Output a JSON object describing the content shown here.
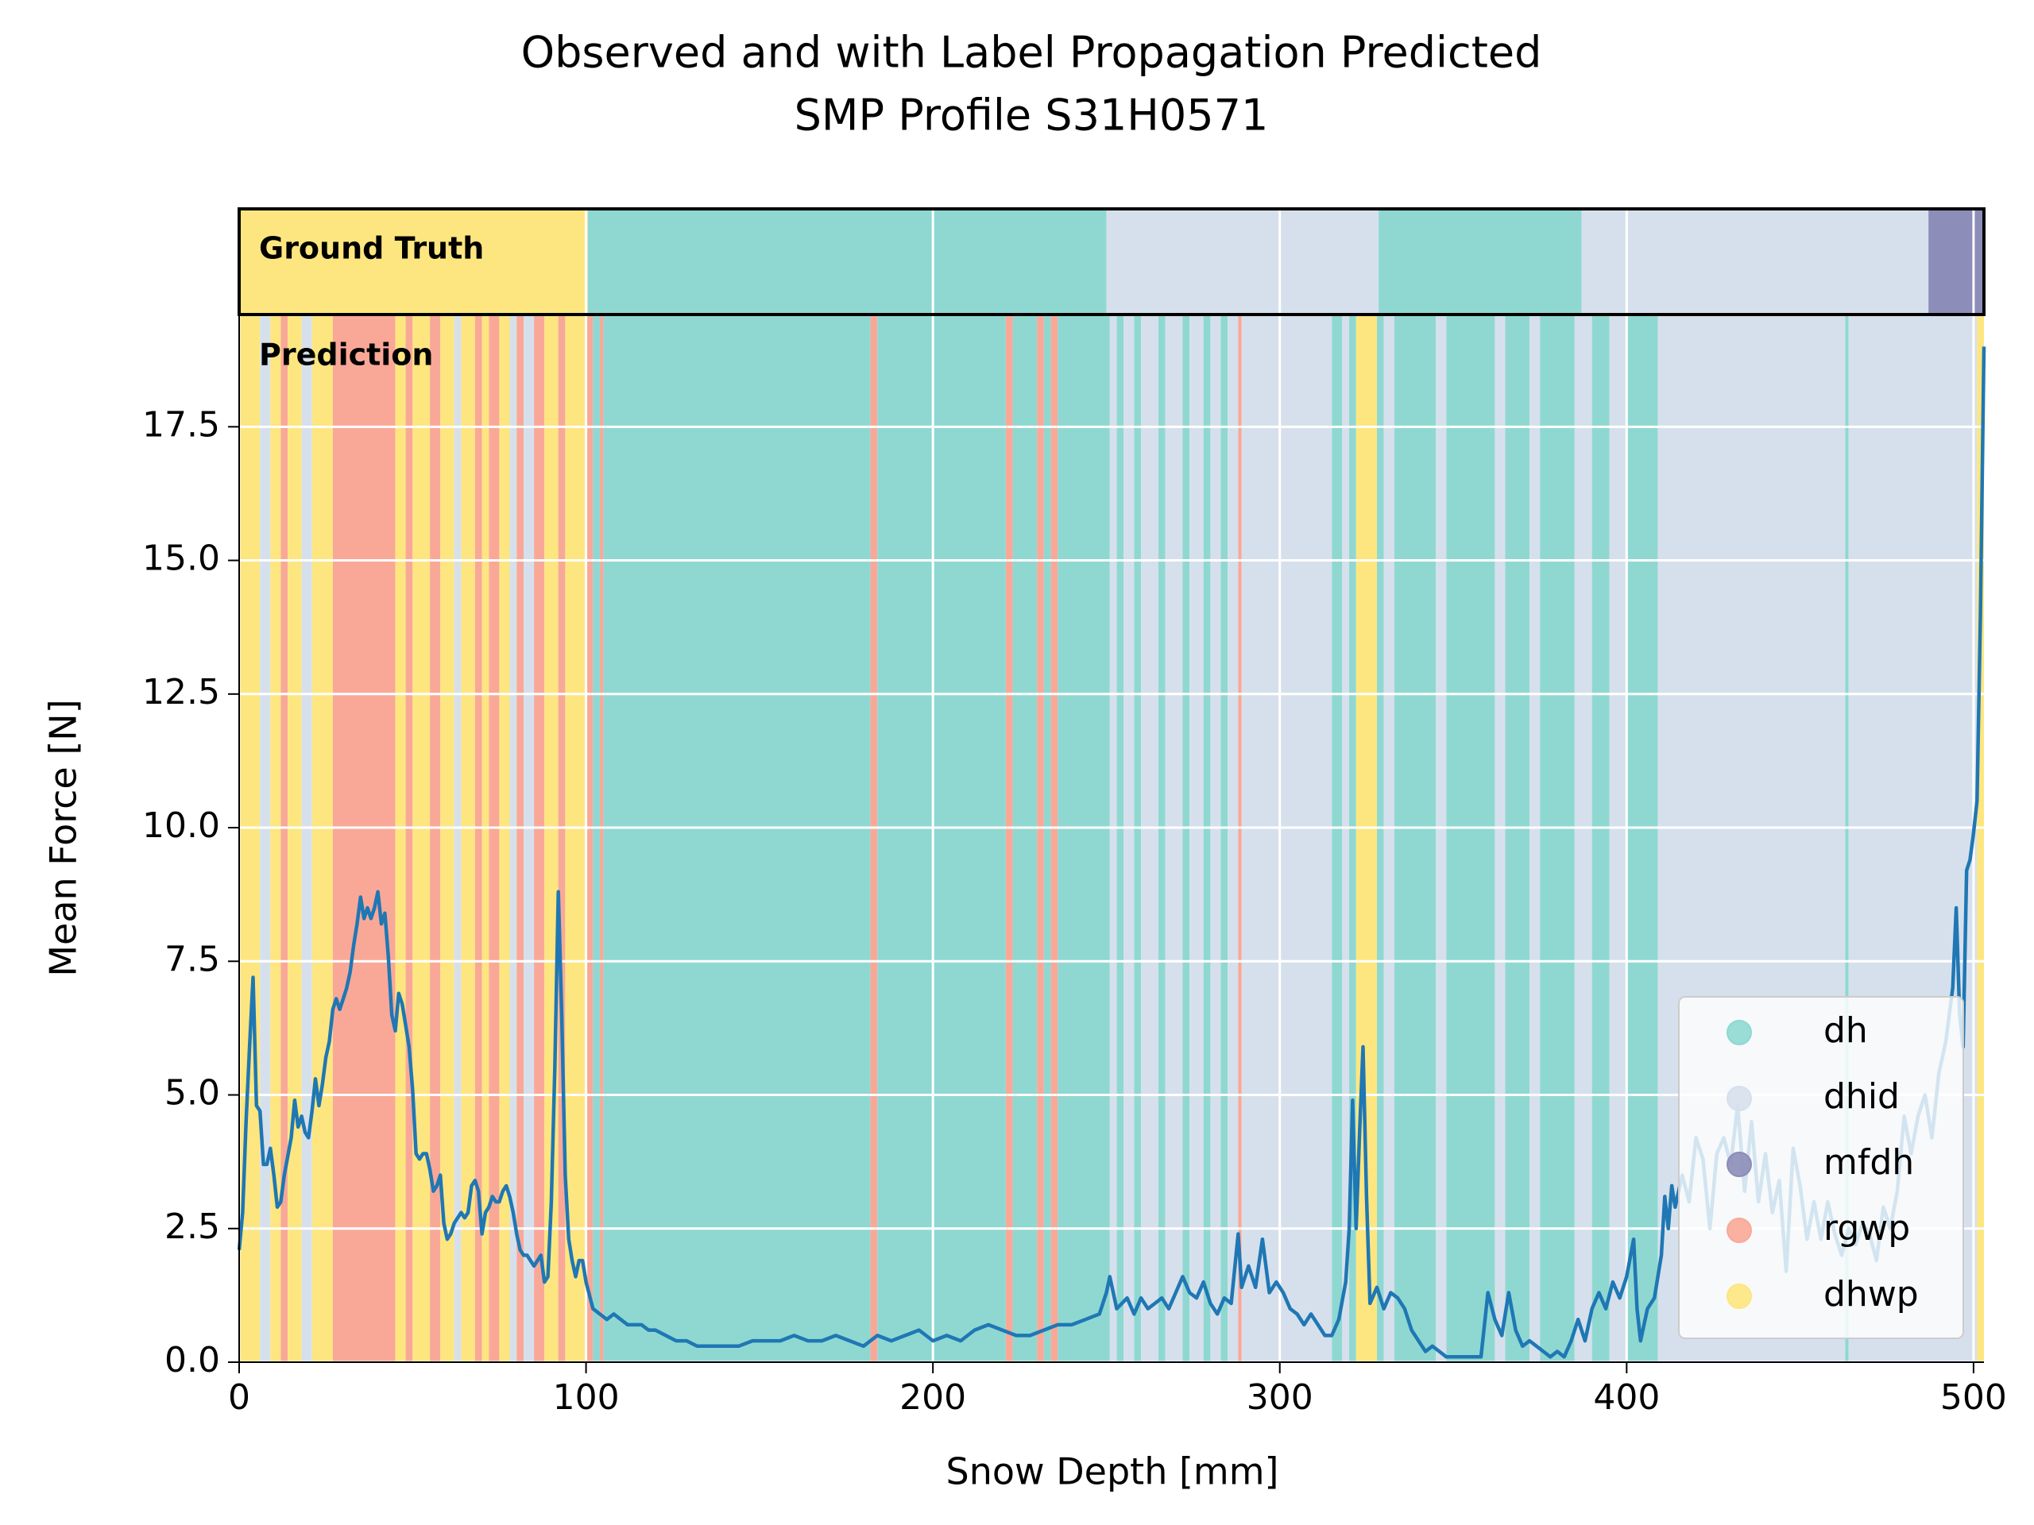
{
  "chart_data": {
    "type": "line",
    "title": "Observed and with Label Propagation Predicted",
    "subtitle": "SMP Profile S31H0571",
    "x_label": "Snow Depth [mm]",
    "y_label": "Mean Force [N]",
    "color": "#1f77b4",
    "xlim": [
      0,
      503
    ],
    "ylim": [
      0,
      19.6
    ],
    "xticks": [
      0,
      100,
      200,
      300,
      400,
      500
    ],
    "yticks": [
      {
        "value": 0,
        "label": "0.0"
      },
      2.5,
      {
        "value": 5,
        "label": "5.0"
      },
      7.5,
      {
        "value": 10,
        "label": "10.0"
      },
      12.5,
      {
        "value": 15,
        "label": "15.0"
      },
      17.5
    ],
    "grid": true,
    "legend": "lower right",
    "classes": [
      {
        "name": "dh",
        "color": "#8fd8d2"
      },
      {
        "name": "dhid",
        "color": "#d6e0ec"
      },
      {
        "name": "mfdh",
        "color": "#8c8db8"
      },
      {
        "name": "rgwp",
        "color": "#f9a898"
      },
      {
        "name": "dhwp",
        "color": "#fde67f"
      }
    ],
    "ground_truth": {
      "label": "Ground Truth",
      "segments": [
        {
          "start": 0,
          "end": 100.5,
          "class": "dhwp"
        },
        {
          "start": 100.5,
          "end": 250,
          "class": "dh"
        },
        {
          "start": 250,
          "end": 328.5,
          "class": "dhid"
        },
        {
          "start": 328.5,
          "end": 387,
          "class": "dh"
        },
        {
          "start": 387,
          "end": 487,
          "class": "dhid"
        },
        {
          "start": 487,
          "end": 503,
          "class": "mfdh"
        }
      ]
    },
    "prediction": {
      "label": "Prediction",
      "segments": [
        {
          "start": 0,
          "end": 6,
          "class": "dhwp"
        },
        {
          "start": 6,
          "end": 9,
          "class": "dhid"
        },
        {
          "start": 9,
          "end": 12,
          "class": "dhwp"
        },
        {
          "start": 12,
          "end": 14,
          "class": "rgwp"
        },
        {
          "start": 14,
          "end": 18,
          "class": "dhwp"
        },
        {
          "start": 18,
          "end": 21,
          "class": "dhid"
        },
        {
          "start": 21,
          "end": 27,
          "class": "dhwp"
        },
        {
          "start": 27,
          "end": 45,
          "class": "rgwp"
        },
        {
          "start": 45,
          "end": 48,
          "class": "dhwp"
        },
        {
          "start": 48,
          "end": 50,
          "class": "rgwp"
        },
        {
          "start": 50,
          "end": 55,
          "class": "dhwp"
        },
        {
          "start": 55,
          "end": 58,
          "class": "rgwp"
        },
        {
          "start": 58,
          "end": 62,
          "class": "dhwp"
        },
        {
          "start": 62,
          "end": 64,
          "class": "dhid"
        },
        {
          "start": 64,
          "end": 68,
          "class": "dhwp"
        },
        {
          "start": 68,
          "end": 70,
          "class": "rgwp"
        },
        {
          "start": 70,
          "end": 72,
          "class": "dhwp"
        },
        {
          "start": 72,
          "end": 75,
          "class": "rgwp"
        },
        {
          "start": 75,
          "end": 78,
          "class": "dhwp"
        },
        {
          "start": 78,
          "end": 80,
          "class": "dhid"
        },
        {
          "start": 80,
          "end": 82,
          "class": "rgwp"
        },
        {
          "start": 82,
          "end": 85,
          "class": "dhid"
        },
        {
          "start": 85,
          "end": 88,
          "class": "rgwp"
        },
        {
          "start": 88,
          "end": 92,
          "class": "dhwp"
        },
        {
          "start": 92,
          "end": 94,
          "class": "rgwp"
        },
        {
          "start": 94,
          "end": 100,
          "class": "dhwp"
        },
        {
          "start": 100,
          "end": 102,
          "class": "rgwp"
        },
        {
          "start": 102,
          "end": 104,
          "class": "dh"
        },
        {
          "start": 104,
          "end": 105,
          "class": "rgwp"
        },
        {
          "start": 105,
          "end": 182,
          "class": "dh"
        },
        {
          "start": 182,
          "end": 184,
          "class": "rgwp"
        },
        {
          "start": 184,
          "end": 221,
          "class": "dh"
        },
        {
          "start": 221,
          "end": 223,
          "class": "rgwp"
        },
        {
          "start": 223,
          "end": 230,
          "class": "dh"
        },
        {
          "start": 230,
          "end": 232,
          "class": "rgwp"
        },
        {
          "start": 232,
          "end": 234,
          "class": "dh"
        },
        {
          "start": 234,
          "end": 236,
          "class": "rgwp"
        },
        {
          "start": 236,
          "end": 251,
          "class": "dh"
        },
        {
          "start": 251,
          "end": 253,
          "class": "dhid"
        },
        {
          "start": 253,
          "end": 255,
          "class": "dh"
        },
        {
          "start": 255,
          "end": 258,
          "class": "dhid"
        },
        {
          "start": 258,
          "end": 260,
          "class": "dh"
        },
        {
          "start": 260,
          "end": 265,
          "class": "dhid"
        },
        {
          "start": 265,
          "end": 267,
          "class": "dh"
        },
        {
          "start": 267,
          "end": 272,
          "class": "dhid"
        },
        {
          "start": 272,
          "end": 274,
          "class": "dh"
        },
        {
          "start": 274,
          "end": 278,
          "class": "dhid"
        },
        {
          "start": 278,
          "end": 280,
          "class": "dh"
        },
        {
          "start": 280,
          "end": 283,
          "class": "dhid"
        },
        {
          "start": 283,
          "end": 285,
          "class": "dh"
        },
        {
          "start": 285,
          "end": 288,
          "class": "dhid"
        },
        {
          "start": 288,
          "end": 289,
          "class": "rgwp"
        },
        {
          "start": 289,
          "end": 315,
          "class": "dhid"
        },
        {
          "start": 315,
          "end": 318,
          "class": "dh"
        },
        {
          "start": 318,
          "end": 320,
          "class": "dhid"
        },
        {
          "start": 320,
          "end": 322,
          "class": "dh"
        },
        {
          "start": 322,
          "end": 328,
          "class": "dhwp"
        },
        {
          "start": 328,
          "end": 330,
          "class": "dh"
        },
        {
          "start": 330,
          "end": 333,
          "class": "dhid"
        },
        {
          "start": 333,
          "end": 345,
          "class": "dh"
        },
        {
          "start": 345,
          "end": 348,
          "class": "dhid"
        },
        {
          "start": 348,
          "end": 362,
          "class": "dh"
        },
        {
          "start": 362,
          "end": 365,
          "class": "dhid"
        },
        {
          "start": 365,
          "end": 372,
          "class": "dh"
        },
        {
          "start": 372,
          "end": 375,
          "class": "dhid"
        },
        {
          "start": 375,
          "end": 385,
          "class": "dh"
        },
        {
          "start": 385,
          "end": 390,
          "class": "dhid"
        },
        {
          "start": 390,
          "end": 395,
          "class": "dh"
        },
        {
          "start": 395,
          "end": 400,
          "class": "dhid"
        },
        {
          "start": 400,
          "end": 409,
          "class": "dh"
        },
        {
          "start": 409,
          "end": 463,
          "class": "dhid"
        },
        {
          "start": 463,
          "end": 464,
          "class": "dh"
        },
        {
          "start": 464,
          "end": 501,
          "class": "dhid"
        },
        {
          "start": 501,
          "end": 503,
          "class": "dhwp"
        }
      ]
    },
    "x": [
      0,
      1,
      2,
      3,
      4,
      5,
      6,
      7,
      8,
      9,
      10,
      11,
      12,
      13,
      15,
      16,
      17,
      18,
      19,
      20,
      21,
      22,
      23,
      24,
      25,
      26,
      27,
      28,
      29,
      30,
      31,
      32,
      33,
      34,
      35,
      36,
      37,
      38,
      39,
      40,
      41,
      42,
      43,
      44,
      45,
      46,
      47,
      48,
      49,
      50,
      51,
      52,
      53,
      54,
      55,
      56,
      57,
      58,
      59,
      60,
      61,
      62,
      63,
      64,
      65,
      66,
      67,
      68,
      69,
      70,
      71,
      72,
      73,
      74,
      75,
      76,
      77,
      78,
      79,
      80,
      81,
      82,
      83,
      84,
      85,
      86,
      87,
      88,
      89,
      90,
      91,
      92,
      93,
      94,
      95,
      96,
      97,
      98,
      99,
      100,
      102,
      104,
      106,
      108,
      110,
      112,
      114,
      116,
      118,
      120,
      123,
      126,
      129,
      132,
      136,
      140,
      144,
      148,
      152,
      156,
      160,
      164,
      168,
      172,
      176,
      180,
      184,
      188,
      192,
      196,
      200,
      204,
      208,
      212,
      216,
      220,
      224,
      228,
      232,
      236,
      240,
      244,
      248,
      250,
      251,
      253,
      256,
      258,
      260,
      262,
      264,
      266,
      268,
      270,
      272,
      274,
      276,
      278,
      280,
      282,
      284,
      286,
      288,
      289,
      291,
      293,
      295,
      297,
      299,
      301,
      303,
      305,
      307,
      309,
      311,
      313,
      315,
      317,
      319,
      320,
      321,
      322,
      323,
      324,
      325,
      326,
      328,
      330,
      332,
      334,
      336,
      338,
      340,
      342,
      344,
      346,
      348,
      350,
      352,
      354,
      356,
      358,
      360,
      362,
      364,
      366,
      368,
      370,
      372,
      374,
      376,
      378,
      380,
      382,
      384,
      386,
      388,
      390,
      392,
      394,
      396,
      398,
      400,
      402,
      403,
      404,
      406,
      408,
      410,
      411,
      412,
      413,
      414,
      416,
      418,
      420,
      422,
      424,
      426,
      428,
      430,
      432,
      434,
      436,
      438,
      440,
      442,
      444,
      446,
      448,
      450,
      452,
      454,
      456,
      458,
      460,
      462,
      464,
      466,
      468,
      470,
      472,
      474,
      476,
      478,
      480,
      482,
      484,
      486,
      488,
      490,
      492,
      494,
      495,
      496,
      497,
      498,
      499,
      500,
      501,
      502,
      503
    ],
    "values": [
      2.1,
      2.8,
      4.5,
      5.9,
      7.2,
      4.8,
      4.7,
      3.7,
      3.7,
      4.0,
      3.5,
      2.9,
      3.0,
      3.5,
      4.2,
      4.9,
      4.4,
      4.6,
      4.3,
      4.2,
      4.7,
      5.3,
      4.8,
      5.2,
      5.7,
      6.0,
      6.6,
      6.8,
      6.6,
      6.8,
      7.0,
      7.3,
      7.8,
      8.2,
      8.7,
      8.3,
      8.5,
      8.3,
      8.5,
      8.8,
      8.2,
      8.4,
      7.6,
      6.5,
      6.2,
      6.9,
      6.7,
      6.3,
      5.9,
      5.1,
      3.9,
      3.8,
      3.9,
      3.9,
      3.6,
      3.2,
      3.3,
      3.5,
      2.6,
      2.3,
      2.4,
      2.6,
      2.7,
      2.8,
      2.7,
      2.8,
      3.3,
      3.4,
      3.2,
      2.4,
      2.8,
      2.9,
      3.1,
      3.0,
      3.0,
      3.2,
      3.3,
      3.1,
      2.8,
      2.4,
      2.1,
      2.0,
      2.0,
      1.9,
      1.8,
      1.9,
      2.0,
      1.5,
      1.6,
      3.0,
      5.5,
      8.8,
      6.5,
      3.5,
      2.3,
      1.9,
      1.6,
      1.9,
      1.9,
      1.5,
      1.0,
      0.9,
      0.8,
      0.9,
      0.8,
      0.7,
      0.7,
      0.7,
      0.6,
      0.6,
      0.5,
      0.4,
      0.4,
      0.3,
      0.3,
      0.3,
      0.3,
      0.4,
      0.4,
      0.4,
      0.5,
      0.4,
      0.4,
      0.5,
      0.4,
      0.3,
      0.5,
      0.4,
      0.5,
      0.6,
      0.4,
      0.5,
      0.4,
      0.6,
      0.7,
      0.6,
      0.5,
      0.5,
      0.6,
      0.7,
      0.7,
      0.8,
      0.9,
      1.3,
      1.6,
      1.0,
      1.2,
      0.9,
      1.2,
      1.0,
      1.1,
      1.2,
      1.0,
      1.3,
      1.6,
      1.3,
      1.2,
      1.5,
      1.1,
      0.9,
      1.2,
      1.1,
      2.4,
      1.4,
      1.8,
      1.4,
      2.3,
      1.3,
      1.5,
      1.3,
      1.0,
      0.9,
      0.7,
      0.9,
      0.7,
      0.5,
      0.5,
      0.8,
      1.5,
      2.5,
      4.9,
      2.5,
      4.3,
      5.9,
      3.1,
      1.1,
      1.4,
      1.0,
      1.3,
      1.2,
      1.0,
      0.6,
      0.4,
      0.2,
      0.3,
      0.2,
      0.1,
      0.1,
      0.1,
      0.1,
      0.1,
      0.1,
      1.3,
      0.8,
      0.5,
      1.3,
      0.6,
      0.3,
      0.4,
      0.3,
      0.2,
      0.1,
      0.2,
      0.1,
      0.4,
      0.8,
      0.4,
      1.0,
      1.3,
      1.0,
      1.5,
      1.2,
      1.6,
      2.3,
      1.0,
      0.4,
      1.0,
      1.2,
      2.0,
      3.1,
      2.5,
      3.3,
      2.9,
      3.5,
      3.0,
      4.2,
      3.8,
      2.5,
      3.9,
      4.2,
      3.7,
      4.8,
      3.2,
      4.5,
      3.0,
      3.9,
      2.8,
      3.4,
      1.7,
      4.0,
      3.3,
      2.3,
      3.0,
      2.3,
      3.0,
      2.4,
      2.0,
      2.5,
      2.2,
      2.6,
      2.4,
      1.9,
      2.9,
      2.5,
      3.2,
      4.6,
      3.9,
      4.6,
      5.0,
      4.2,
      5.4,
      6.0,
      7.0,
      8.5,
      6.5,
      5.9,
      9.2,
      9.4,
      9.9,
      10.5,
      14.0,
      19.0
    ]
  }
}
